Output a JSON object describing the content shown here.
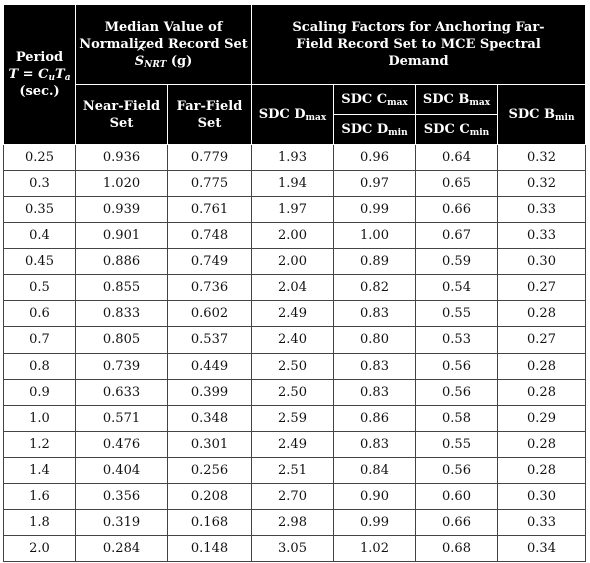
{
  "header": {
    "period": {
      "line1": "Period",
      "T": "T",
      "eq": " = ",
      "C": "C",
      "C_sub": "u",
      "T2": "T",
      "T2_sub": "a",
      "unit": "(sec.)"
    },
    "median": {
      "line1": "Median Value of",
      "line2": "Normalized Record Set",
      "S": "S",
      "S_sub": "NRT",
      "unit": " (g)"
    },
    "scaling": "Scaling Factors for Anchoring Far-Field Record Set to MCE Spectral Demand",
    "near_field": "Near-Field Set",
    "far_field": "Far-Field Set",
    "sdc_d_max": {
      "label": "SDC D",
      "sub": "max"
    },
    "sdc_c_max": {
      "label": "SDC C",
      "sub": "max"
    },
    "sdc_d_min": {
      "label": "SDC D",
      "sub": "min"
    },
    "sdc_b_max": {
      "label": "SDC B",
      "sub": "max"
    },
    "sdc_c_min": {
      "label": "SDC C",
      "sub": "min"
    },
    "sdc_b_min": {
      "label": "SDC B",
      "sub": "min"
    }
  },
  "rows": [
    [
      "0.25",
      "0.936",
      "0.779",
      "1.93",
      "0.96",
      "0.64",
      "0.32"
    ],
    [
      "0.3",
      "1.020",
      "0.775",
      "1.94",
      "0.97",
      "0.65",
      "0.32"
    ],
    [
      "0.35",
      "0.939",
      "0.761",
      "1.97",
      "0.99",
      "0.66",
      "0.33"
    ],
    [
      "0.4",
      "0.901",
      "0.748",
      "2.00",
      "1.00",
      "0.67",
      "0.33"
    ],
    [
      "0.45",
      "0.886",
      "0.749",
      "2.00",
      "0.89",
      "0.59",
      "0.30"
    ],
    [
      "0.5",
      "0.855",
      "0.736",
      "2.04",
      "0.82",
      "0.54",
      "0.27"
    ],
    [
      "0.6",
      "0.833",
      "0.602",
      "2.49",
      "0.83",
      "0.55",
      "0.28"
    ],
    [
      "0.7",
      "0.805",
      "0.537",
      "2.40",
      "0.80",
      "0.53",
      "0.27"
    ],
    [
      "0.8",
      "0.739",
      "0.449",
      "2.50",
      "0.83",
      "0.56",
      "0.28"
    ],
    [
      "0.9",
      "0.633",
      "0.399",
      "2.50",
      "0.83",
      "0.56",
      "0.28"
    ],
    [
      "1.0",
      "0.571",
      "0.348",
      "2.59",
      "0.86",
      "0.58",
      "0.29"
    ],
    [
      "1.2",
      "0.476",
      "0.301",
      "2.49",
      "0.83",
      "0.55",
      "0.28"
    ],
    [
      "1.4",
      "0.404",
      "0.256",
      "2.51",
      "0.84",
      "0.56",
      "0.28"
    ],
    [
      "1.6",
      "0.356",
      "0.208",
      "2.70",
      "0.90",
      "0.60",
      "0.30"
    ],
    [
      "1.8",
      "0.319",
      "0.168",
      "2.98",
      "0.99",
      "0.66",
      "0.33"
    ],
    [
      "2.0",
      "0.284",
      "0.148",
      "3.05",
      "1.02",
      "0.68",
      "0.34"
    ]
  ]
}
